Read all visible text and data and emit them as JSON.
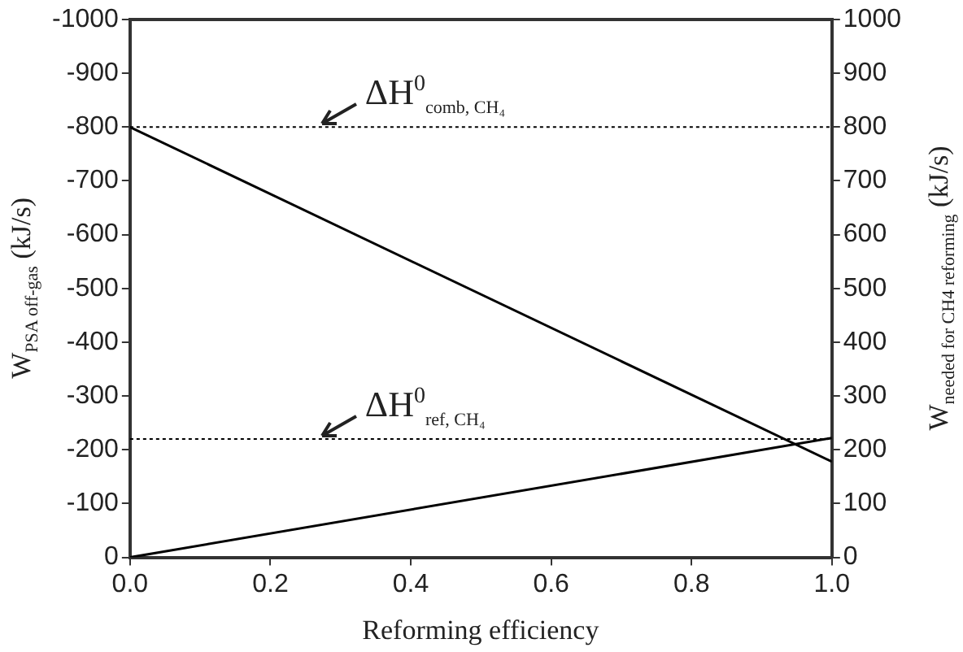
{
  "chart_data": {
    "type": "line",
    "xlabel": "Reforming efficiency",
    "ylabel": "W$_{PSA off-gas}$ (kJ/s)",
    "y2label": "W$_{needed for CH4 reforming}$ (kJ/s)",
    "x": [
      0,
      1
    ],
    "series": [
      {
        "color": "#000000",
        "values": [
          -800,
          -178
        ]
      },
      {
        "color": "#000000",
        "values": [
          0,
          222
        ],
        "axis": "y2"
      }
    ],
    "xlim": [
      0,
      1
    ],
    "xticks": [
      {
        "value": 0,
        "label": "0.0"
      },
      {
        "value": 0.2,
        "label": "0.2"
      },
      {
        "value": 0.4,
        "label": "0.4"
      },
      {
        "value": 0.6,
        "label": "0.6"
      },
      {
        "value": 0.8,
        "label": "0.8"
      },
      {
        "value": 1,
        "label": "1.0"
      }
    ],
    "ylim": [
      0,
      -1000
    ],
    "yticks": [
      0,
      -100,
      -200,
      -300,
      -400,
      -500,
      -600,
      -700,
      -800,
      -900,
      -1000
    ],
    "y2lim": [
      0,
      1000
    ],
    "y2ticks": [
      0,
      100,
      200,
      300,
      400,
      500,
      600,
      700,
      800,
      900,
      1000
    ],
    "ref_lines": [
      {
        "axis": "y",
        "value": -800,
        "color": "#000000",
        "line_style": "dotted"
      },
      {
        "axis": "y2",
        "value": 220,
        "color": "#000000",
        "line_style": "dotted"
      }
    ],
    "annotations": [
      {
        "text": "ΔH$^{0}$$_{comb, CH₄}$",
        "x": 0.27,
        "y": -800
      },
      {
        "text": "ΔH$^{0}$$_{ref, CH₄}$",
        "x": 0.27,
        "y": -220
      }
    ],
    "grid": false,
    "legend": false,
    "marker": "none",
    "line_style": "solid"
  }
}
